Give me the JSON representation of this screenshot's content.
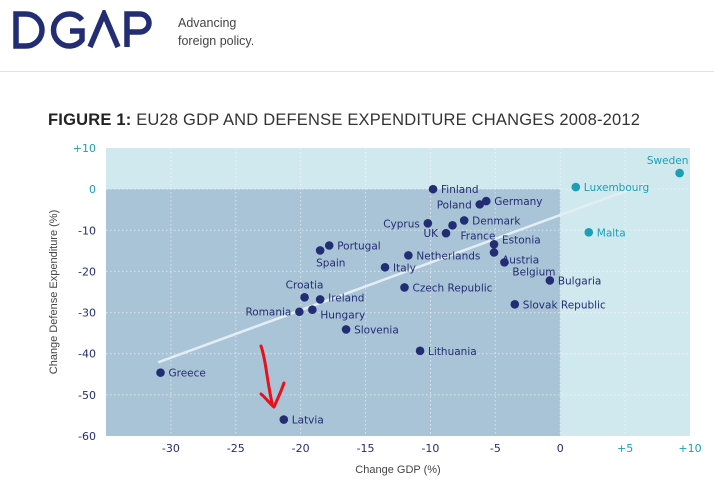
{
  "header": {
    "logo_text": "DGAP",
    "tagline_line1": "Advancing",
    "tagline_line2": "foreign policy."
  },
  "figure": {
    "label": "FIGURE 1:",
    "title": "EU28 GDP AND DEFENSE EXPENDITURE CHANGES 2008-2012"
  },
  "colors": {
    "navy": "#232d73",
    "teal": "#1a9fb4",
    "light_bg": "#cfe9ef",
    "dark_bg": "#a9c4d7",
    "trend": "#e3eef4",
    "annotation": "#e8101a"
  },
  "chart_data": {
    "type": "scatter",
    "title": "EU28 GDP AND DEFENSE EXPENDITURE CHANGES 2008-2012",
    "xlabel": "Change GDP (%)",
    "ylabel": "Change Defense Expenditure (%)",
    "xlim": [
      -35,
      10
    ],
    "ylim": [
      -60,
      10
    ],
    "xticks": [
      {
        "value": -30,
        "label": "-30"
      },
      {
        "value": -25,
        "label": "-25"
      },
      {
        "value": -20,
        "label": "-20"
      },
      {
        "value": -15,
        "label": "-15"
      },
      {
        "value": -10,
        "label": "-10"
      },
      {
        "value": -5,
        "label": "-5"
      },
      {
        "value": 0,
        "label": "0"
      },
      {
        "value": 5,
        "label": "+5"
      },
      {
        "value": 10,
        "label": "+10"
      }
    ],
    "yticks": [
      {
        "value": 10,
        "label": "+10"
      },
      {
        "value": 0,
        "label": "0"
      },
      {
        "value": -10,
        "label": "-10"
      },
      {
        "value": -20,
        "label": "-20"
      },
      {
        "value": -30,
        "label": "-30"
      },
      {
        "value": -40,
        "label": "-40"
      },
      {
        "value": -50,
        "label": "-50"
      },
      {
        "value": -60,
        "label": "-60"
      }
    ],
    "grid": true,
    "points": [
      {
        "name": "Greece",
        "x": -30.8,
        "y": -44.6
      },
      {
        "name": "Latvia",
        "x": -21.3,
        "y": -56.0
      },
      {
        "name": "Romania",
        "x": -20.1,
        "y": -29.8
      },
      {
        "name": "Hungary",
        "x": -19.1,
        "y": -29.3
      },
      {
        "name": "Croatia",
        "x": -19.7,
        "y": -26.3
      },
      {
        "name": "Ireland",
        "x": -18.5,
        "y": -26.8
      },
      {
        "name": "Spain",
        "x": -18.5,
        "y": -14.9
      },
      {
        "name": "Portugal",
        "x": -17.8,
        "y": -13.7
      },
      {
        "name": "Slovenia",
        "x": -16.5,
        "y": -34.1
      },
      {
        "name": "Italy",
        "x": -13.5,
        "y": -19.0
      },
      {
        "name": "Czech Republic",
        "x": -12.0,
        "y": -23.9
      },
      {
        "name": "Netherlands",
        "x": -11.7,
        "y": -16.1
      },
      {
        "name": "Lithuania",
        "x": -10.8,
        "y": -39.3
      },
      {
        "name": "Finland",
        "x": -9.8,
        "y": 0.0
      },
      {
        "name": "Cyprus",
        "x": -10.2,
        "y": -8.3
      },
      {
        "name": "UK",
        "x": -8.8,
        "y": -10.7
      },
      {
        "name": "France",
        "x": -8.3,
        "y": -8.8
      },
      {
        "name": "Denmark",
        "x": -7.4,
        "y": -7.6
      },
      {
        "name": "Poland",
        "x": -6.2,
        "y": -3.7
      },
      {
        "name": "Germany",
        "x": -5.7,
        "y": -2.9
      },
      {
        "name": "Estonia",
        "x": -5.1,
        "y": -13.4
      },
      {
        "name": "Austria",
        "x": -5.1,
        "y": -15.4
      },
      {
        "name": "Belgium",
        "x": -4.3,
        "y": -17.8
      },
      {
        "name": "Bulgaria",
        "x": -0.8,
        "y": -22.2
      },
      {
        "name": "Slovak Republic",
        "x": -3.5,
        "y": -28.0
      },
      {
        "name": "Luxembourg",
        "x": 1.2,
        "y": 0.5
      },
      {
        "name": "Malta",
        "x": 2.2,
        "y": -10.5
      },
      {
        "name": "Sweden",
        "x": 9.2,
        "y": 3.9
      }
    ],
    "trendline": {
      "from": [
        -30.9,
        -42.0
      ],
      "to": [
        6.5,
        1.2
      ]
    },
    "shaded_region": {
      "x": [
        -35,
        0
      ],
      "y": [
        -60,
        0
      ]
    },
    "annotation": {
      "type": "hand-drawn arrow",
      "points_to": "Latvia"
    }
  }
}
